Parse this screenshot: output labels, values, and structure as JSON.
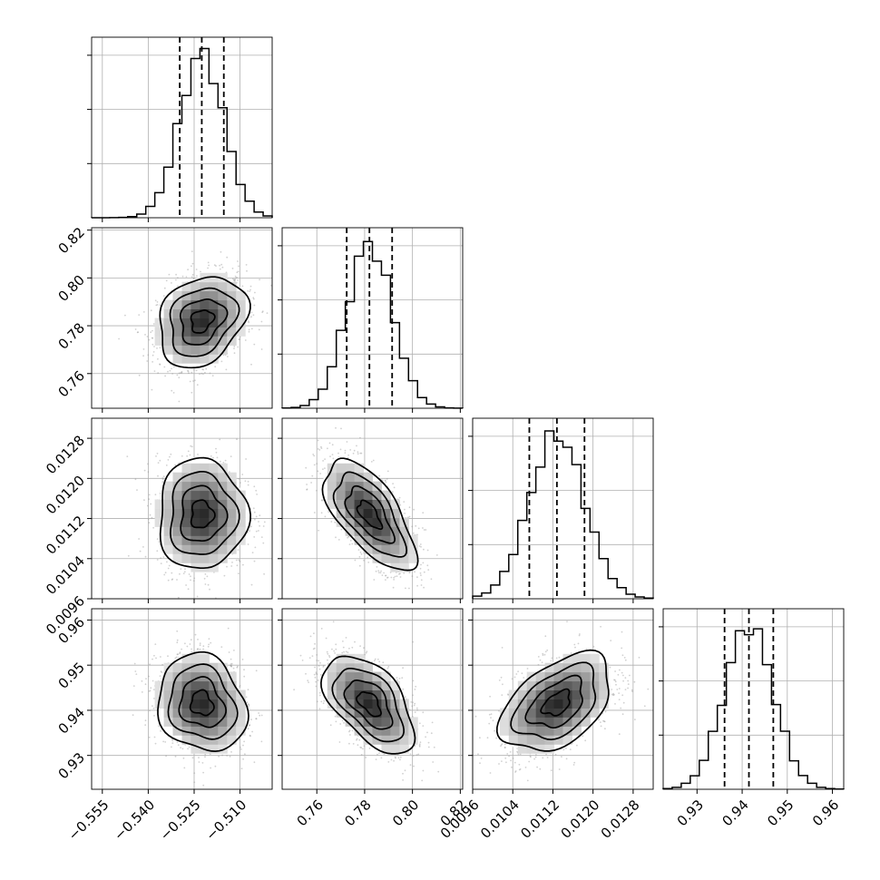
{
  "chart_data": {
    "type": "corner",
    "title": "",
    "parameters": [
      {
        "label": "",
        "range": [
          -0.5585,
          -0.4995
        ],
        "ticks": [
          -0.555,
          -0.54,
          -0.525,
          -0.51
        ],
        "tick_labels": [
          "−0.555",
          "−0.540",
          "−0.525",
          "−0.510"
        ],
        "mean": -0.5225,
        "sd": 0.0072,
        "quantiles": [
          -0.5297,
          -0.5225,
          -0.5153
        ]
      },
      {
        "label": "",
        "range": [
          0.7455,
          0.821
        ],
        "ticks": [
          0.76,
          0.78,
          0.8,
          0.82
        ],
        "tick_labels": [
          "0.76",
          "0.78",
          "0.80",
          "0.82"
        ],
        "mean": 0.782,
        "sd": 0.0095,
        "quantiles": [
          0.7725,
          0.782,
          0.7915
        ]
      },
      {
        "label": "",
        "range": [
          0.0096,
          0.0132
        ],
        "ticks": [
          0.0096,
          0.0104,
          0.0112,
          0.012,
          0.0128
        ],
        "tick_labels": [
          "0.0096",
          "0.0104",
          "0.0112",
          "0.0120",
          "0.0128"
        ],
        "mean": 0.01128,
        "sd": 0.00055,
        "quantiles": [
          0.01073,
          0.01128,
          0.01183
        ]
      },
      {
        "label": "",
        "range": [
          0.9225,
          0.9625
        ],
        "ticks": [
          0.93,
          0.94,
          0.95,
          0.96
        ],
        "tick_labels": [
          "0.93",
          "0.94",
          "0.95",
          "0.96"
        ],
        "mean": 0.9415,
        "sd": 0.0054,
        "quantiles": [
          0.9361,
          0.9415,
          0.9469
        ]
      }
    ],
    "correlations": {
      "1_0": 0.25,
      "2_0": 0.0,
      "2_1": -0.65,
      "3_0": -0.15,
      "3_1": -0.55,
      "3_2": 0.45
    },
    "contour_levels_sigma": [
      0.5,
      1.0,
      1.5,
      2.0
    ],
    "grid": true,
    "colors": {
      "hist": "#000000",
      "points": "#9a9a9a",
      "grid": "#b0b0b0",
      "axes": "#000000"
    }
  }
}
